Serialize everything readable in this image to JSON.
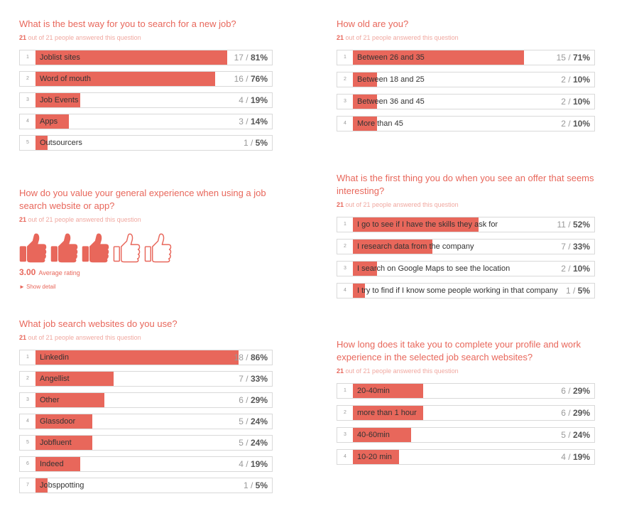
{
  "colors": {
    "accent": "#e8675b",
    "meta": "#f0a8a0"
  },
  "q1": {
    "title": "What is the best way for you to search for a new job?",
    "answered_count": "21",
    "answered_text": "out of 21 people answered this question",
    "options": [
      {
        "idx": "1",
        "label": "Joblist sites",
        "count": "17",
        "pct": "81%",
        "fill": 0.81
      },
      {
        "idx": "2",
        "label": "Word of mouth",
        "count": "16",
        "pct": "76%",
        "fill": 0.76
      },
      {
        "idx": "3",
        "label": "Job Events",
        "count": "4",
        "pct": "19%",
        "fill": 0.19
      },
      {
        "idx": "4",
        "label": "Apps",
        "count": "3",
        "pct": "14%",
        "fill": 0.14
      },
      {
        "idx": "5",
        "label": "Outsourcers",
        "count": "1",
        "pct": "5%",
        "fill": 0.05
      }
    ]
  },
  "q2": {
    "title_l1": "How do you value your general experience when using a job",
    "title_l2": "search website or app?",
    "answered_count": "21",
    "answered_text": "out of 21 people answered this question",
    "rating_value": "3.00",
    "rating_label": "Average rating",
    "rating": 3,
    "rating_max": 5,
    "show_detail": "► Show detail"
  },
  "q3": {
    "title": "What job search websites do you use?",
    "answered_count": "21",
    "answered_text": "out of 21 people answered this question",
    "options": [
      {
        "idx": "1",
        "label": "Linkedin",
        "count": "18",
        "pct": "86%",
        "fill": 0.86
      },
      {
        "idx": "2",
        "label": "Angellist",
        "count": "7",
        "pct": "33%",
        "fill": 0.33
      },
      {
        "idx": "3",
        "label": "Other",
        "count": "6",
        "pct": "29%",
        "fill": 0.29
      },
      {
        "idx": "4",
        "label": "Glassdoor",
        "count": "5",
        "pct": "24%",
        "fill": 0.24
      },
      {
        "idx": "5",
        "label": "Jobfluent",
        "count": "5",
        "pct": "24%",
        "fill": 0.24
      },
      {
        "idx": "6",
        "label": "Indeed",
        "count": "4",
        "pct": "19%",
        "fill": 0.19
      },
      {
        "idx": "7",
        "label": "Jobsppotting",
        "count": "1",
        "pct": "5%",
        "fill": 0.05
      }
    ]
  },
  "q4": {
    "title": "How old are you?",
    "answered_count": "21",
    "answered_text": "out of 21 people answered this question",
    "options": [
      {
        "idx": "1",
        "label": "Between 26 and 35",
        "count": "15",
        "pct": "71%",
        "fill": 0.71
      },
      {
        "idx": "2",
        "label": "Between 18 and 25",
        "count": "2",
        "pct": "10%",
        "fill": 0.1
      },
      {
        "idx": "3",
        "label": "Between 36 and 45",
        "count": "2",
        "pct": "10%",
        "fill": 0.1
      },
      {
        "idx": "4",
        "label": "More than 45",
        "count": "2",
        "pct": "10%",
        "fill": 0.1
      }
    ]
  },
  "q5": {
    "title_l1": "What is the first thing you do when you see an offer that seems",
    "title_l2": "interesting?",
    "answered_count": "21",
    "answered_text": "out of 21 people answered this question",
    "options": [
      {
        "idx": "1",
        "label": "I go to see if I have the skills they ask for",
        "count": "11",
        "pct": "52%",
        "fill": 0.52
      },
      {
        "idx": "2",
        "label": "I research data from the company",
        "count": "7",
        "pct": "33%",
        "fill": 0.33
      },
      {
        "idx": "3",
        "label": "I search on Google Maps to see the location",
        "count": "2",
        "pct": "10%",
        "fill": 0.1
      },
      {
        "idx": "4",
        "label": "I try to find if I know some people working in that company",
        "count": "1",
        "pct": "5%",
        "fill": 0.05
      }
    ]
  },
  "q6": {
    "title_l1": "How long does it take you to complete your profile and work",
    "title_l2": "experience in the selected job search websites?",
    "answered_count": "21",
    "answered_text": "out of 21 people answered this question",
    "options": [
      {
        "idx": "1",
        "label": "20-40min",
        "count": "6",
        "pct": "29%",
        "fill": 0.29
      },
      {
        "idx": "2",
        "label": "more than 1 hour",
        "count": "6",
        "pct": "29%",
        "fill": 0.29
      },
      {
        "idx": "3",
        "label": "40-60min",
        "count": "5",
        "pct": "24%",
        "fill": 0.24
      },
      {
        "idx": "4",
        "label": "10-20 min",
        "count": "4",
        "pct": "19%",
        "fill": 0.19
      }
    ]
  }
}
